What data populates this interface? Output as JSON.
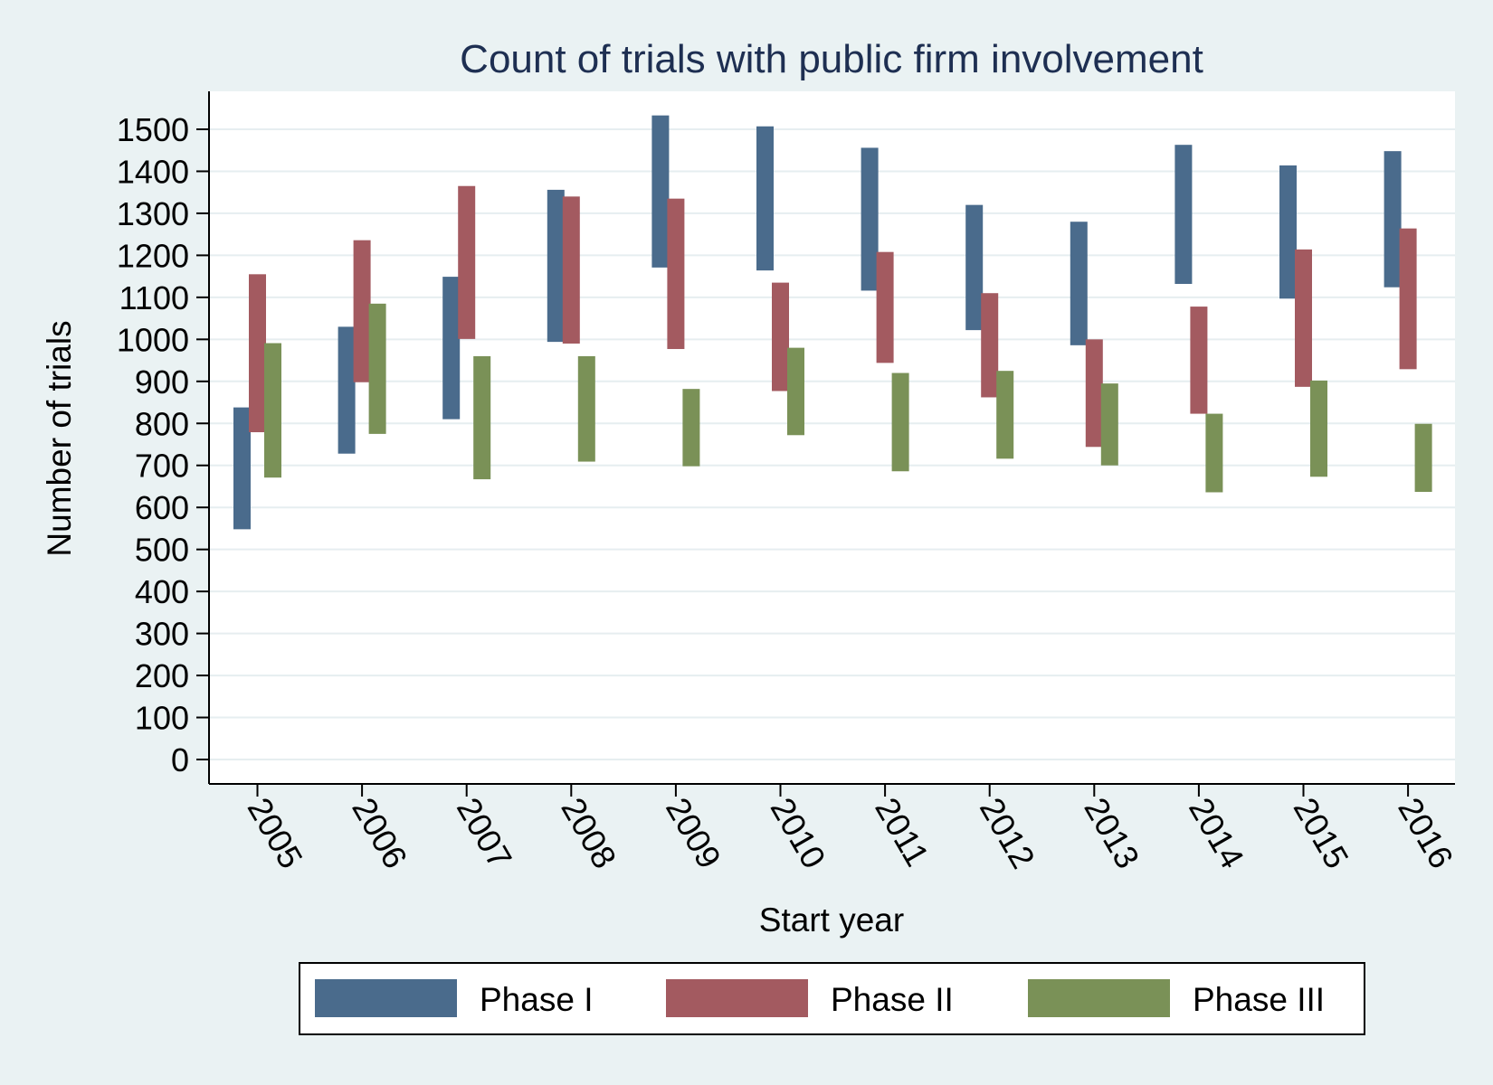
{
  "chart_data": {
    "type": "bar",
    "title": "Count of trials with public firm involvement",
    "xlabel": "Start year",
    "ylabel": "Number of trials",
    "categories": [
      "2005",
      "2006",
      "2007",
      "2008",
      "2009",
      "2010",
      "2011",
      "2012",
      "2013",
      "2014",
      "2015",
      "2016"
    ],
    "ylim": [
      0,
      1500
    ],
    "yticks": [
      0,
      100,
      200,
      300,
      400,
      500,
      600,
      700,
      800,
      900,
      1000,
      1100,
      1200,
      1300,
      1400,
      1500
    ],
    "grid": true,
    "legend_position": "bottom",
    "series": [
      {
        "name": "Phase I",
        "color": "#4a6b8c",
        "low": [
          548,
          728,
          810,
          994,
          1171,
          1164,
          1116,
          1022,
          986,
          1132,
          1097,
          1124
        ],
        "high": [
          838,
          1030,
          1149,
          1356,
          1533,
          1507,
          1456,
          1320,
          1280,
          1463,
          1414,
          1448
        ]
      },
      {
        "name": "Phase II",
        "color": "#a35a60",
        "low": [
          779,
          898,
          1001,
          990,
          977,
          877,
          944,
          862,
          744,
          823,
          887,
          929
        ],
        "high": [
          1155,
          1236,
          1365,
          1340,
          1335,
          1135,
          1208,
          1110,
          1000,
          1078,
          1214,
          1264
        ]
      },
      {
        "name": "Phase III",
        "color": "#7a9157",
        "low": [
          671,
          775,
          667,
          709,
          698,
          772,
          686,
          716,
          700,
          636,
          673,
          637
        ],
        "high": [
          991,
          1085,
          960,
          960,
          882,
          980,
          920,
          925,
          895,
          823,
          902,
          799
        ]
      }
    ]
  }
}
